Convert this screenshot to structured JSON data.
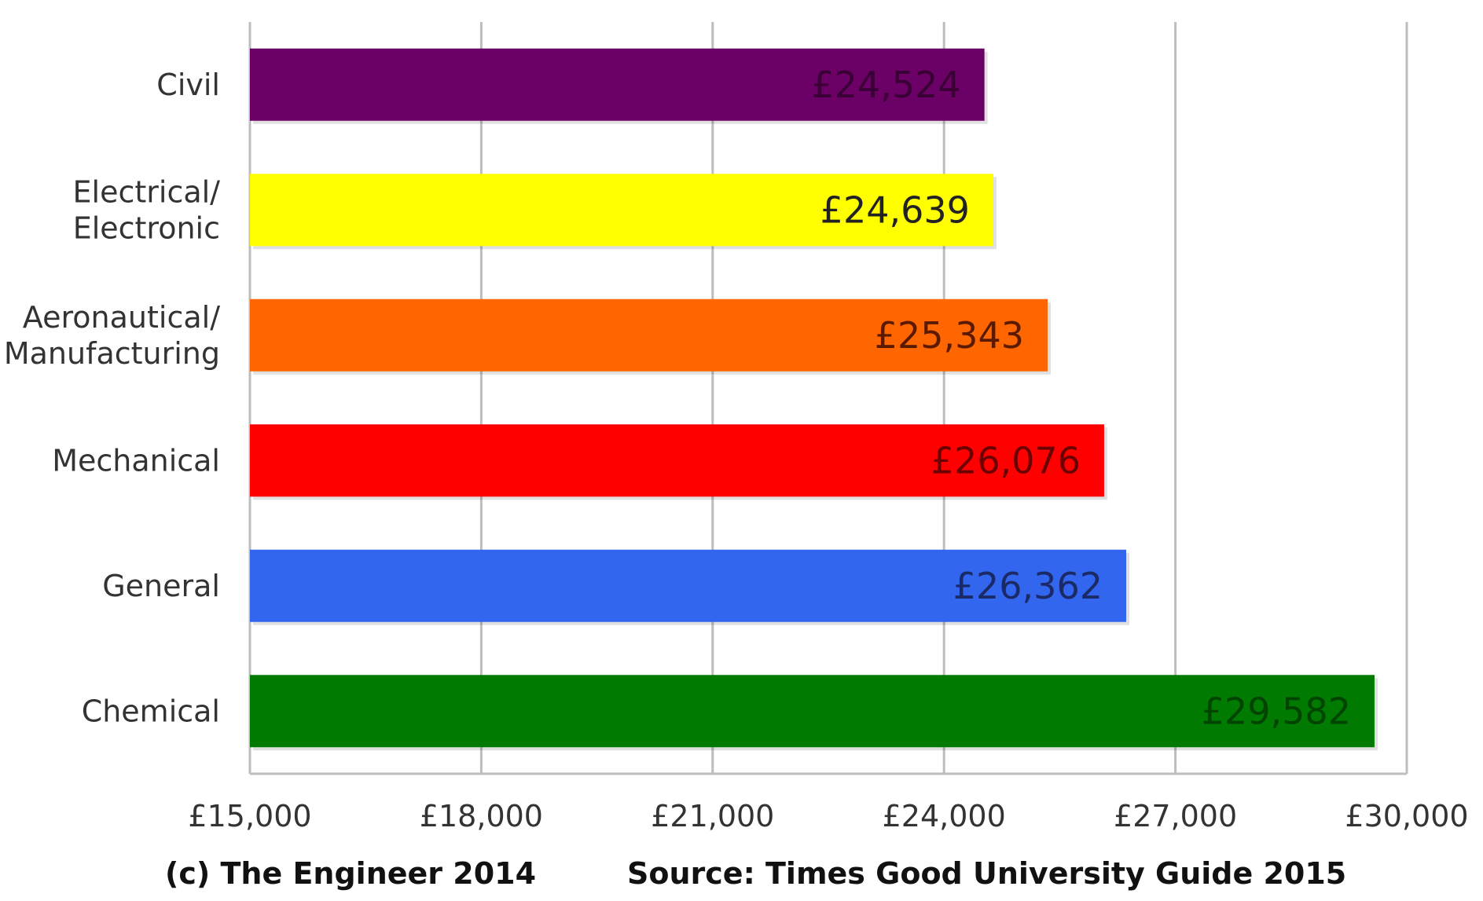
{
  "chart_data": {
    "type": "bar",
    "orientation": "horizontal",
    "categories": [
      "Civil",
      "Electrical/\nElectronic",
      "Aeronautical/\nManufacturing",
      "Mechanical",
      "General",
      "Chemical"
    ],
    "values": [
      24524,
      24639,
      25343,
      26076,
      26362,
      29582
    ],
    "value_labels": [
      "£24,524",
      "£24,639",
      "£25,343",
      "£26,076",
      "£26,362",
      "£29,582"
    ],
    "colors": [
      "#6b0066",
      "#ffff00",
      "#ff6600",
      "#ff0000",
      "#3366ee",
      "#007a00"
    ],
    "label_colors": [
      "#3a0036",
      "#222222",
      "#5a1a00",
      "#6a0000",
      "#1a2a66",
      "#004400"
    ],
    "xlim": [
      15000,
      30000
    ],
    "x_ticks": [
      15000,
      18000,
      21000,
      24000,
      27000,
      30000
    ],
    "x_tick_labels": [
      "£15,000",
      "£18,000",
      "£21,000",
      "£24,000",
      "£27,000",
      "£30,000"
    ],
    "grid": true,
    "title": "",
    "xlabel": "",
    "ylabel": ""
  },
  "footer": {
    "copyright": "(c) The Engineer 2014",
    "source": "Source: Times Good University Guide 2015"
  }
}
